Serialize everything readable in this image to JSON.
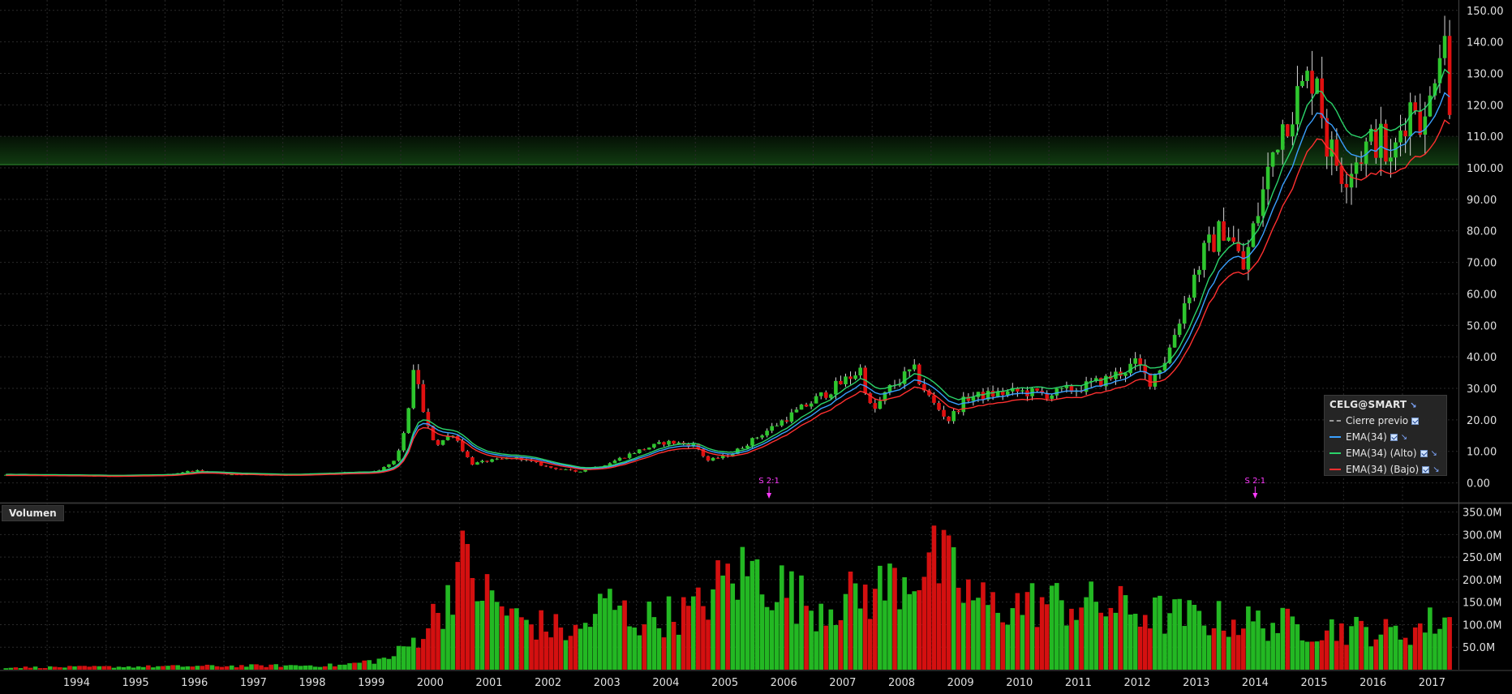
{
  "ticker_label": "CELG@SMART",
  "volume_panel_label": "Volumen",
  "legend": [
    {
      "label": "Cierre previo",
      "color": "#9a9a9a",
      "style": "dashed"
    },
    {
      "label": "EMA(34)",
      "color": "#3aa0ff",
      "style": "solid"
    },
    {
      "label": "EMA(34) (Alto)",
      "color": "#2bd46a",
      "style": "solid"
    },
    {
      "label": "EMA(34) (Bajo)",
      "color": "#ff3030",
      "style": "solid"
    }
  ],
  "split_markers": [
    {
      "label": "S 2:1",
      "year": 2006.25
    },
    {
      "label": "S 2:1",
      "year": 2014.5
    }
  ],
  "chart_data": [
    {
      "type": "candlestick",
      "title": "",
      "x_ticks": [
        "1994",
        "1995",
        "1996",
        "1997",
        "1998",
        "1999",
        "2000",
        "2001",
        "2002",
        "2003",
        "2004",
        "2005",
        "2006",
        "2007",
        "2008",
        "2009",
        "2010",
        "2011",
        "2012",
        "2013",
        "2014",
        "2015",
        "2016",
        "2017"
      ],
      "y_ticks": [
        "0.00",
        "10.00",
        "20.00",
        "30.00",
        "40.00",
        "50.00",
        "60.00",
        "70.00",
        "80.00",
        "90.00",
        "100.00",
        "110.00",
        "120.00",
        "130.00",
        "140.00",
        "150.00"
      ],
      "xlim": [
        1993.2,
        2017.95
      ],
      "ylim": [
        -5,
        152
      ],
      "grid": true,
      "legend_position": "bottom-right",
      "highlight_zone": {
        "from": 101,
        "to": 110,
        "color": "#1f6b1f"
      },
      "price_anchors": [
        [
          1993.3,
          2.5
        ],
        [
          1995.0,
          2.2
        ],
        [
          1996.0,
          2.5
        ],
        [
          1996.5,
          4
        ],
        [
          1997.0,
          2.8
        ],
        [
          1998.0,
          2.5
        ],
        [
          1999.0,
          3.2
        ],
        [
          1999.6,
          3.5
        ],
        [
          1999.9,
          7
        ],
        [
          2000.05,
          15
        ],
        [
          2000.25,
          38
        ],
        [
          2000.4,
          20
        ],
        [
          2000.6,
          12
        ],
        [
          2000.9,
          16
        ],
        [
          2001.0,
          12
        ],
        [
          2001.2,
          6
        ],
        [
          2001.5,
          7
        ],
        [
          2002.0,
          8
        ],
        [
          2002.5,
          5
        ],
        [
          2003.0,
          3.5
        ],
        [
          2003.5,
          6
        ],
        [
          2004.0,
          10
        ],
        [
          2004.5,
          13
        ],
        [
          2005.0,
          12
        ],
        [
          2005.2,
          7
        ],
        [
          2005.6,
          9
        ],
        [
          2006.0,
          14
        ],
        [
          2006.5,
          20
        ],
        [
          2007.0,
          26
        ],
        [
          2007.5,
          32
        ],
        [
          2007.8,
          36
        ],
        [
          2008.0,
          22
        ],
        [
          2008.3,
          30
        ],
        [
          2008.7,
          36
        ],
        [
          2009.0,
          26
        ],
        [
          2009.3,
          20
        ],
        [
          2009.6,
          27
        ],
        [
          2010.0,
          28
        ],
        [
          2010.5,
          29
        ],
        [
          2011.0,
          28
        ],
        [
          2011.5,
          30
        ],
        [
          2012.0,
          33
        ],
        [
          2012.5,
          38
        ],
        [
          2012.7,
          32
        ],
        [
          2013.0,
          40
        ],
        [
          2013.3,
          57
        ],
        [
          2013.6,
          72
        ],
        [
          2014.0,
          82
        ],
        [
          2014.3,
          68
        ],
        [
          2014.6,
          90
        ],
        [
          2014.9,
          112
        ],
        [
          2015.2,
          122
        ],
        [
          2015.55,
          132
        ],
        [
          2015.7,
          108
        ],
        [
          2016.0,
          98
        ],
        [
          2016.3,
          105
        ],
        [
          2016.6,
          110
        ],
        [
          2016.8,
          100
        ],
        [
          2017.0,
          115
        ],
        [
          2017.2,
          122
        ],
        [
          2017.4,
          112
        ],
        [
          2017.6,
          140
        ],
        [
          2017.75,
          146
        ],
        [
          2017.82,
          102
        ]
      ]
    },
    {
      "type": "bar",
      "title": "Volumen",
      "y_ticks": [
        "50.0M",
        "100.0M",
        "150.0M",
        "200.0M",
        "250.0M",
        "300.0M",
        "350.0M"
      ],
      "ylim": [
        0,
        360
      ],
      "unit": "M",
      "volume_anchors": [
        [
          1993.3,
          5
        ],
        [
          1999.0,
          10
        ],
        [
          1999.8,
          25
        ],
        [
          2000.2,
          60
        ],
        [
          2000.7,
          140
        ],
        [
          2001.0,
          240
        ],
        [
          2001.5,
          160
        ],
        [
          2002.0,
          110
        ],
        [
          2003.0,
          80
        ],
        [
          2003.5,
          150
        ],
        [
          2004.0,
          110
        ],
        [
          2005.0,
          130
        ],
        [
          2005.5,
          200
        ],
        [
          2006.0,
          220
        ],
        [
          2006.5,
          180
        ],
        [
          2007.0,
          140
        ],
        [
          2008.0,
          170
        ],
        [
          2008.7,
          220
        ],
        [
          2009.0,
          240
        ],
        [
          2009.3,
          220
        ],
        [
          2009.6,
          170
        ],
        [
          2010.0,
          140
        ],
        [
          2011.0,
          150
        ],
        [
          2012.0,
          140
        ],
        [
          2013.0,
          120
        ],
        [
          2014.0,
          110
        ],
        [
          2015.0,
          100
        ],
        [
          2016.0,
          90
        ],
        [
          2017.0,
          80
        ],
        [
          2017.8,
          120
        ]
      ]
    }
  ]
}
